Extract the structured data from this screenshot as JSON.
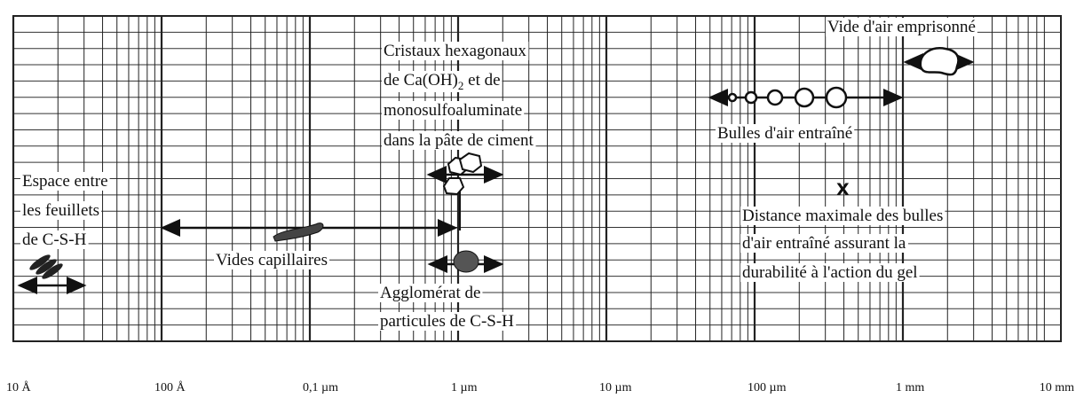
{
  "annotations": {
    "entrapped_air": "Vide d'air emprisonné",
    "crystals": {
      "line1": "Cristaux hexagonaux",
      "line2": {
        "pre": "de Ca(OH)",
        "sub": "2",
        "post": " et de"
      },
      "line3": "monosulfoaluminate",
      "line4": "dans la pâte de ciment"
    },
    "entrained_air": "Bulles d'air entraîné",
    "interlayer": [
      "Espace entre",
      "les feuillets",
      "de C-S-H"
    ],
    "capillary": "Vides capillaires",
    "agglomerate": [
      "Agglomérat de",
      "particules de C-S-H"
    ],
    "spacing_mark": "X",
    "max_spacing": [
      "Distance maximale des bulles",
      "d'air entraîné assurant la",
      "durabilité à l'action du gel"
    ]
  },
  "scale_labels": [
    "10 Å",
    "100 Å",
    "0,1 µm",
    "1 µm",
    "10 µm",
    "100 µm",
    "1 mm",
    "10 mm"
  ]
}
